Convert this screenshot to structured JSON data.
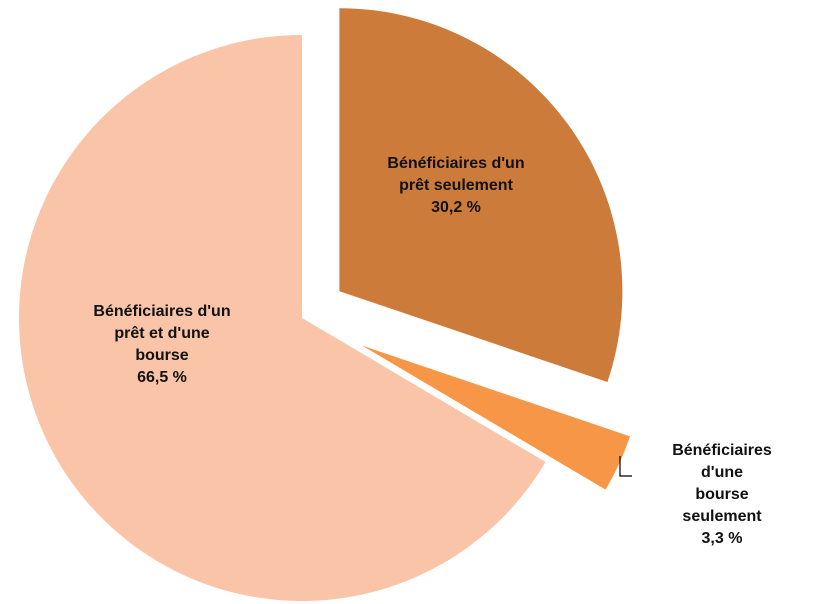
{
  "chart_data": {
    "type": "pie",
    "categories": [
      "Bénéficiaires d'un\nprêt seulement",
      "Bénéficiaires d'une\nbourse seulement",
      "Bénéficiaires d'un\nprêt et d'une\nbourse"
    ],
    "values": [
      30.2,
      3.3,
      66.5
    ],
    "value_labels": [
      "30,2 %",
      "3,3 %",
      "66,5 %"
    ],
    "colors": [
      "#cd7b3a",
      "#f79646",
      "#f9c4a8"
    ]
  }
}
